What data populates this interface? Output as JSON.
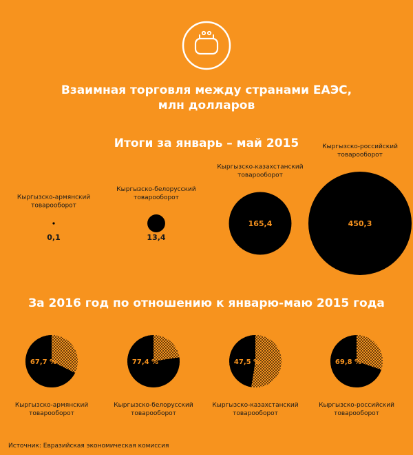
{
  "header": {
    "icon": "wallet-icon",
    "title_line1": "Взаимная торговля между странами ЕАЭС,",
    "title_line2": "млн долларов"
  },
  "colors": {
    "background": "#F7931E",
    "dark": "#000000",
    "accent_text": "#F7931E",
    "white": "#FFFFFF"
  },
  "chart_data": [
    {
      "type": "bubble",
      "title": "Итоги за январь – май 2015",
      "categories": [
        "Кыргызско-армянский товарооборот",
        "Кыргызско-белорусский товарооборот",
        "Кыргызско-казахстанский товарооборот",
        "Кыргызско-российский товарооборот"
      ],
      "category_lines": [
        [
          "Кыргызско-армянский",
          "товарооборот"
        ],
        [
          "Кыргызско-белорусский",
          "товарооборот"
        ],
        [
          "Кыргызско-казахстанский",
          "товарооборот"
        ],
        [
          "Кыргызско-российский",
          "товарооборот"
        ]
      ],
      "values": [
        0.1,
        13.4,
        165.4,
        450.3
      ],
      "value_labels": [
        "0,1",
        "13,4",
        "165,4",
        "450,3"
      ]
    },
    {
      "type": "pie",
      "title": "За 2016 год по отношению к январю-маю 2015 года",
      "categories": [
        "Кыргызско-армянский товарооборот",
        "Кыргызско-белорусский товарооборот",
        "Кыргызско-казахстанский товарооборот",
        "Кыргызско-российский товарооборот"
      ],
      "category_lines": [
        [
          "Кыргызско-армянский",
          "товарооборот"
        ],
        [
          "Кыргызско-белорусский",
          "товарооборот"
        ],
        [
          "Кыргызско-казахстанский",
          "товарооборот"
        ],
        [
          "Кыргызско-российский",
          "товарооборот"
        ]
      ],
      "values": [
        67.7,
        77.4,
        47.5,
        69.8
      ],
      "value_labels": [
        "67,7 %",
        "77,4 %",
        "47,5 %",
        "69,8 %"
      ]
    }
  ],
  "source": "Источник: Евразийская экономическая комиссия"
}
